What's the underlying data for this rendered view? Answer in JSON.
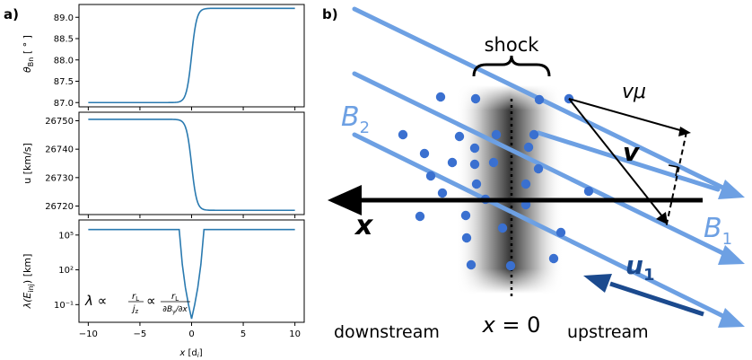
{
  "panel_a": {
    "label": "a)",
    "x_axis": {
      "label_prefix": "x",
      "label_unit": "[d",
      "label_unit_sub": "i",
      "label_unit_end": "]",
      "ticks": [
        -10,
        -5,
        0,
        5,
        10
      ]
    },
    "formula": {
      "lambda": "λ ∝",
      "r": "r",
      "L": "L",
      "jz": "j",
      "z": "z",
      "prop": "∝",
      "den": "∂B",
      "den_sub": "y",
      "den_end": "/∂x"
    }
  },
  "chart_data": [
    {
      "type": "line",
      "ylabel": "θ_Bn [°]",
      "ylabel_main": "θ",
      "ylabel_sub": "Bn",
      "ylabel_unit": " [ ° ]",
      "yticks": [
        "87.0",
        "87.5",
        "88.0",
        "88.5",
        "89.0"
      ],
      "ylim": [
        86.9,
        89.3
      ],
      "xlim": [
        -10.9,
        10.9
      ],
      "color": "#2a7ab0",
      "x": [
        -10,
        -4,
        -2,
        -1,
        -0.5,
        0,
        0.5,
        1,
        2,
        4,
        10
      ],
      "y": [
        87.0,
        87.0,
        87.03,
        87.2,
        87.6,
        88.1,
        88.6,
        89.0,
        89.18,
        89.21,
        89.21
      ]
    },
    {
      "type": "line",
      "ylabel": "u [km/s]",
      "yticks": [
        "26720",
        "26730",
        "26740",
        "26750"
      ],
      "ylim": [
        26717,
        26753
      ],
      "xlim": [
        -10.9,
        10.9
      ],
      "color": "#2a7ab0",
      "x": [
        -10,
        -4,
        -2,
        -1,
        -0.5,
        0,
        0.5,
        1,
        2,
        4,
        10
      ],
      "y": [
        26750.5,
        26750.5,
        26750,
        26747,
        26741,
        26734,
        26727,
        26722,
        26719,
        26718.5,
        26718.5
      ]
    },
    {
      "type": "line",
      "ylabel": "λ(E_inj) [km]",
      "ylabel_main": "λ(E",
      "ylabel_sub": "inj",
      "ylabel_unit": ") [km]",
      "yscale": "log",
      "yticks": [
        "10⁻¹",
        "10²",
        "10⁵"
      ],
      "ytick_values": [
        0.1,
        100,
        100000
      ],
      "ylim": [
        0.003,
        2000000
      ],
      "xlim": [
        -10.9,
        10.9
      ],
      "color": "#2a7ab0",
      "x": [
        -10,
        -1.2,
        -0.9,
        -0.6,
        -0.3,
        0,
        0.3,
        0.6,
        0.9,
        1.2,
        10
      ],
      "y": [
        300000,
        300000,
        300,
        3,
        0.1,
        0.006,
        0.1,
        3,
        300,
        300000,
        300000
      ]
    }
  ],
  "panel_b": {
    "label": "b)",
    "shock_label": "shock",
    "B2": "B",
    "B2_sub": "2",
    "B1": "B",
    "B1_sub": "1",
    "v_mu": "vμ",
    "v": "v",
    "x_axis": "x",
    "u1": "u",
    "u1_sub": "1",
    "x_equals": "x",
    "x_equals_rest": " = 0",
    "downstream": "downstream",
    "upstream": "upstream",
    "colors": {
      "field_line": "#6da0e3",
      "dot": "#3a70d0",
      "u_arrow": "#1b4a8e",
      "axis": "#000000"
    }
  }
}
